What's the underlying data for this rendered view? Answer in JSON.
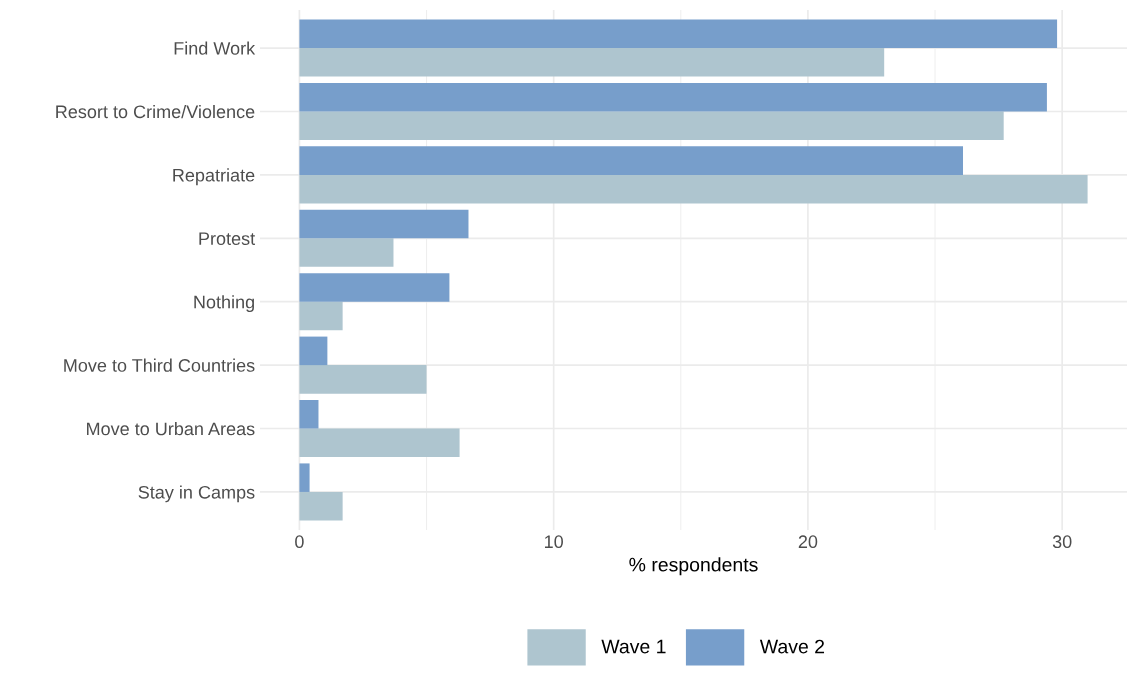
{
  "chart_data": {
    "type": "bar",
    "orientation": "horizontal",
    "xlabel": "% respondents",
    "categories": [
      "Find Work",
      "Resort to Crime/Violence",
      "Repatriate",
      "Protest",
      "Nothing",
      "Move to Third Countries",
      "Move to Urban Areas",
      "Stay in Camps"
    ],
    "series": [
      {
        "name": "Wave 1",
        "color": "#aec5cf",
        "values": [
          23.0,
          27.7,
          31.0,
          3.7,
          1.7,
          5.0,
          6.3,
          1.7
        ]
      },
      {
        "name": "Wave 2",
        "color": "#779ecb",
        "values": [
          29.8,
          29.4,
          26.1,
          6.65,
          5.9,
          1.1,
          0.75,
          0.4
        ]
      }
    ],
    "xlim": [
      -1.55,
      32.55
    ],
    "xticks": [
      0,
      {
        "value": 5,
        "label": null
      },
      10,
      {
        "value": 15,
        "label": null
      },
      20,
      {
        "value": 25,
        "label": null
      },
      30
    ],
    "grid": true,
    "legend": "bottom"
  }
}
